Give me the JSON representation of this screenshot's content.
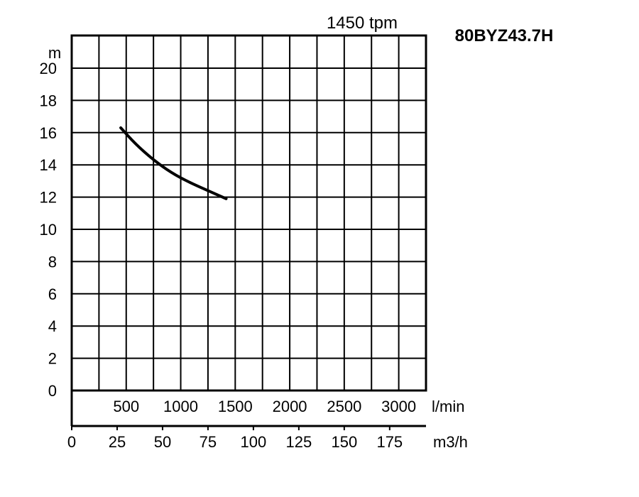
{
  "chart_data": {
    "type": "line",
    "title": "80BYZ43.7H",
    "subtitle": "1450 tpm",
    "ylabel": "m",
    "ylim": [
      0,
      20
    ],
    "yticks": [
      "0",
      "2",
      "4",
      "6",
      "8",
      "10",
      "12",
      "14",
      "16",
      "18",
      "20"
    ],
    "x_lmin": {
      "label": "l/min",
      "ticks": [
        "500",
        "1000",
        "1500",
        "2000",
        "2500",
        "3000"
      ],
      "range": [
        0,
        3250
      ]
    },
    "x_m3h": {
      "label": "m3/h",
      "ticks": [
        "0",
        "25",
        "50",
        "75",
        "100",
        "125",
        "150",
        "175"
      ],
      "range": [
        0,
        195
      ]
    },
    "grid": true,
    "series": [
      {
        "x_m3h": [
          27,
          35,
          45,
          55,
          65,
          75,
          85
        ],
        "y": [
          16.3,
          15.3,
          14.3,
          13.5,
          12.9,
          12.4,
          11.9
        ]
      }
    ]
  }
}
